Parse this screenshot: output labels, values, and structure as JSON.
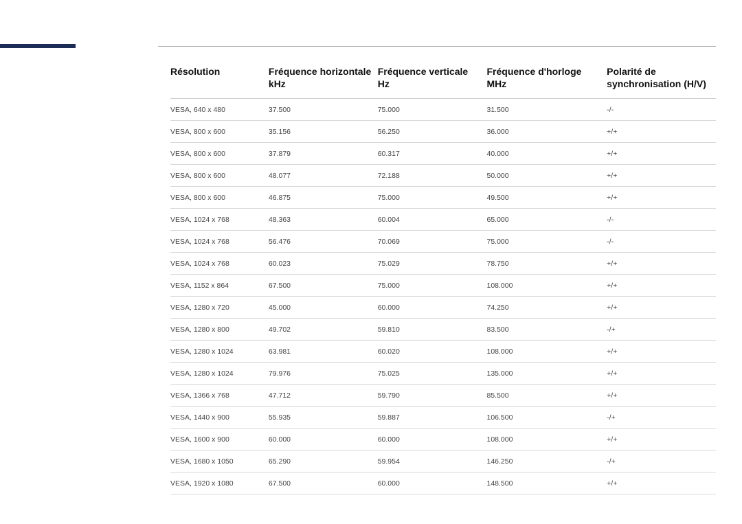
{
  "accent_color": "#1d2b57",
  "columns": [
    {
      "label": "Résolution",
      "unit": ""
    },
    {
      "label": "Fréquence horizontale",
      "unit": "kHz"
    },
    {
      "label": "Fréquence verticale",
      "unit": "Hz"
    },
    {
      "label": "Fréquence d'horloge",
      "unit": "MHz"
    },
    {
      "label": "Polarité de synchronisation (H/V)",
      "unit": ""
    }
  ],
  "rows": [
    [
      "VESA, 640 x 480",
      "37.500",
      "75.000",
      "31.500",
      "-/-"
    ],
    [
      "VESA, 800 x 600",
      "35.156",
      "56.250",
      "36.000",
      "+/+"
    ],
    [
      "VESA, 800 x 600",
      "37.879",
      "60.317",
      "40.000",
      "+/+"
    ],
    [
      "VESA, 800 x 600",
      "48.077",
      "72.188",
      "50.000",
      "+/+"
    ],
    [
      "VESA, 800 x 600",
      "46.875",
      "75.000",
      "49.500",
      "+/+"
    ],
    [
      "VESA, 1024 x 768",
      "48.363",
      "60.004",
      "65.000",
      "-/-"
    ],
    [
      "VESA, 1024 x 768",
      "56.476",
      "70.069",
      "75.000",
      "-/-"
    ],
    [
      "VESA, 1024 x 768",
      "60.023",
      "75.029",
      "78.750",
      "+/+"
    ],
    [
      "VESA, 1152 x 864",
      "67.500",
      "75.000",
      "108.000",
      "+/+"
    ],
    [
      "VESA, 1280 x 720",
      "45.000",
      "60.000",
      "74.250",
      "+/+"
    ],
    [
      "VESA, 1280 x 800",
      "49.702",
      "59.810",
      "83.500",
      "-/+"
    ],
    [
      "VESA, 1280 x 1024",
      "63.981",
      "60.020",
      "108.000",
      "+/+"
    ],
    [
      "VESA, 1280 x 1024",
      "79.976",
      "75.025",
      "135.000",
      "+/+"
    ],
    [
      "VESA, 1366 x 768",
      "47.712",
      "59.790",
      "85.500",
      "+/+"
    ],
    [
      "VESA, 1440 x 900",
      "55.935",
      "59.887",
      "106.500",
      "-/+"
    ],
    [
      "VESA, 1600 x 900",
      "60.000",
      "60.000",
      "108.000",
      "+/+"
    ],
    [
      "VESA, 1680 x 1050",
      "65.290",
      "59.954",
      "146.250",
      "-/+"
    ],
    [
      "VESA, 1920 x 1080",
      "67.500",
      "60.000",
      "148.500",
      "+/+"
    ]
  ]
}
